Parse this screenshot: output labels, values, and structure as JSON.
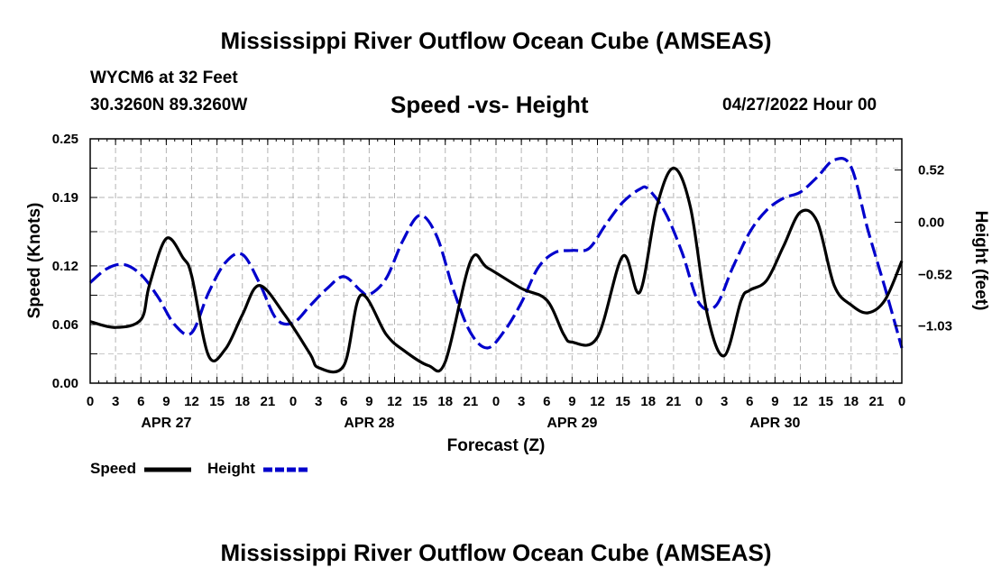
{
  "header": {
    "title": "Mississippi River Outflow Ocean Cube (AMSEAS)",
    "station": "WYCM6 at 32 Feet",
    "coords": "30.3260N  89.3260W",
    "subtitle": "Speed -vs- Height",
    "datetime": "04/27/2022 Hour 00"
  },
  "footer": {
    "title": "Mississippi River Outflow Ocean Cube (AMSEAS)"
  },
  "chart_data": {
    "type": "line",
    "xlabel": "Forecast (Z)",
    "ylabel_left": "Speed (Knots)",
    "ylabel_right": "Height (feet)",
    "x_range_hours": [
      0,
      96
    ],
    "hour_tick_labels": [
      "0",
      "3",
      "6",
      "9",
      "12",
      "15",
      "18",
      "21",
      "0",
      "3",
      "6",
      "9",
      "12",
      "15",
      "18",
      "21",
      "0",
      "3",
      "6",
      "9",
      "12",
      "15",
      "18",
      "21",
      "0",
      "3",
      "6",
      "9",
      "12",
      "15",
      "18",
      "21",
      "0"
    ],
    "date_labels": [
      {
        "label": "APR 27",
        "hour": 9
      },
      {
        "label": "APR 28",
        "hour": 33
      },
      {
        "label": "APR 29",
        "hour": 57
      },
      {
        "label": "APR 30",
        "hour": 81
      }
    ],
    "speed_axis": {
      "min": 0.0,
      "max": 0.25,
      "ticks": [
        "0.00",
        "0.06",
        "0.12",
        "0.19",
        "0.25"
      ]
    },
    "height_axis": {
      "min": -1.6,
      "max": 0.83,
      "ticks": [
        "-1.03",
        "-0.52",
        "0.00",
        "0.52"
      ]
    },
    "series": [
      {
        "name": "Speed",
        "axis": "left",
        "color": "#000000",
        "dashed": false,
        "x": [
          0,
          3,
          6,
          7,
          9,
          11,
          12,
          14,
          16,
          18,
          20,
          23,
          26,
          27,
          30,
          32,
          35,
          37,
          40,
          42,
          45,
          47,
          51,
          54,
          56,
          57,
          60,
          63,
          65,
          67,
          69,
          71,
          73,
          75,
          77,
          78,
          80,
          82,
          84,
          86,
          88,
          90,
          92,
          94,
          96
        ],
        "values": [
          0.063,
          0.057,
          0.065,
          0.1,
          0.148,
          0.128,
          0.11,
          0.028,
          0.035,
          0.07,
          0.1,
          0.07,
          0.03,
          0.016,
          0.018,
          0.09,
          0.05,
          0.034,
          0.018,
          0.022,
          0.125,
          0.118,
          0.097,
          0.085,
          0.05,
          0.042,
          0.047,
          0.13,
          0.093,
          0.18,
          0.22,
          0.18,
          0.07,
          0.028,
          0.085,
          0.095,
          0.105,
          0.14,
          0.175,
          0.165,
          0.1,
          0.08,
          0.072,
          0.085,
          0.125
        ]
      },
      {
        "name": "Height",
        "axis": "right",
        "color": "#0000cc",
        "dashed": true,
        "x": [
          0,
          2,
          4,
          6,
          8,
          10,
          12,
          14,
          16,
          18,
          20,
          22,
          24,
          26,
          28,
          30,
          32,
          33,
          35,
          37,
          39,
          41,
          43,
          45,
          47,
          49,
          51,
          53,
          55,
          57,
          59,
          61,
          63,
          65,
          66,
          68,
          70,
          72,
          74,
          76,
          78,
          80,
          82,
          84,
          86,
          88,
          90,
          92,
          94,
          96
        ],
        "values": [
          -0.6,
          -0.46,
          -0.42,
          -0.52,
          -0.74,
          -1.02,
          -1.1,
          -0.7,
          -0.4,
          -0.32,
          -0.6,
          -0.96,
          -1.0,
          -0.83,
          -0.66,
          -0.54,
          -0.68,
          -0.72,
          -0.56,
          -0.18,
          0.07,
          -0.14,
          -0.68,
          -1.1,
          -1.25,
          -1.08,
          -0.8,
          -0.45,
          -0.3,
          -0.28,
          -0.26,
          -0.02,
          0.2,
          0.33,
          0.33,
          0.1,
          -0.3,
          -0.8,
          -0.83,
          -0.45,
          -0.1,
          0.12,
          0.24,
          0.3,
          0.45,
          0.62,
          0.55,
          -0.08,
          -0.65,
          -1.25
        ]
      }
    ],
    "legend": {
      "position": "bottom-left",
      "items": [
        {
          "label": "Speed",
          "color": "#000000",
          "dashed": false
        },
        {
          "label": "Height",
          "color": "#0000cc",
          "dashed": true
        }
      ]
    }
  }
}
